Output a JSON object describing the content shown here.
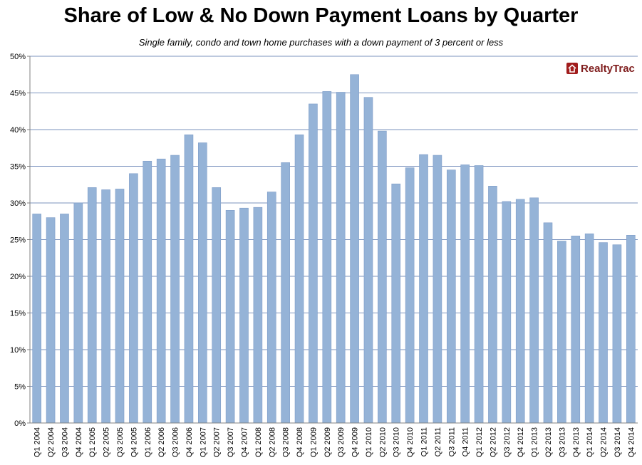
{
  "chart_data": {
    "type": "bar",
    "title": "Share of Low & No Down Payment Loans by Quarter",
    "subtitle": "Single family, condo and town home purchases with a down payment of 3 percent or less",
    "xlabel": "",
    "ylabel": "",
    "ylim": [
      0,
      0.5
    ],
    "yticks": [
      "0%",
      "5%",
      "10%",
      "15%",
      "20%",
      "25%",
      "30%",
      "35%",
      "40%",
      "45%",
      "50%"
    ],
    "grid": true,
    "legend": "none",
    "categories": [
      "Q1 2004",
      "Q2 2004",
      "Q3 2004",
      "Q4 2004",
      "Q1 2005",
      "Q2 2005",
      "Q3 2005",
      "Q4 2005",
      "Q1 2006",
      "Q2 2006",
      "Q3 2006",
      "Q4 2006",
      "Q1 2007",
      "Q2 2007",
      "Q3 2007",
      "Q4 2007",
      "Q1 2008",
      "Q2 2008",
      "Q3 2008",
      "Q4 2008",
      "Q1 2009",
      "Q2 2009",
      "Q3 2009",
      "Q4 2009",
      "Q1 2010",
      "Q2 2010",
      "Q3 2010",
      "Q4 2010",
      "Q1 2011",
      "Q2 2011",
      "Q3 2011",
      "Q4 2011",
      "Q1 2012",
      "Q2 2012",
      "Q3 2012",
      "Q4 2012",
      "Q1 2013",
      "Q2 2013",
      "Q3 2013",
      "Q4 2013",
      "Q1 2014",
      "Q2 2014",
      "Q3 2014",
      "Q4 2014"
    ],
    "values": [
      0.285,
      0.28,
      0.285,
      0.3,
      0.321,
      0.318,
      0.319,
      0.34,
      0.357,
      0.36,
      0.365,
      0.393,
      0.382,
      0.321,
      0.29,
      0.293,
      0.294,
      0.315,
      0.355,
      0.393,
      0.435,
      0.452,
      0.451,
      0.475,
      0.444,
      0.398,
      0.326,
      0.348,
      0.366,
      0.365,
      0.345,
      0.352,
      0.351,
      0.323,
      0.302,
      0.305,
      0.307,
      0.273,
      0.248,
      0.255,
      0.258,
      0.246,
      0.243,
      0.256
    ],
    "colors": {
      "bar": "#95b3d7",
      "bar_stroke": "#7f9dc8",
      "grid": "#4f6fa8",
      "axis": "#808080"
    }
  },
  "logo": {
    "text": "RealtyTrac",
    "color": "#8b1a1a"
  }
}
